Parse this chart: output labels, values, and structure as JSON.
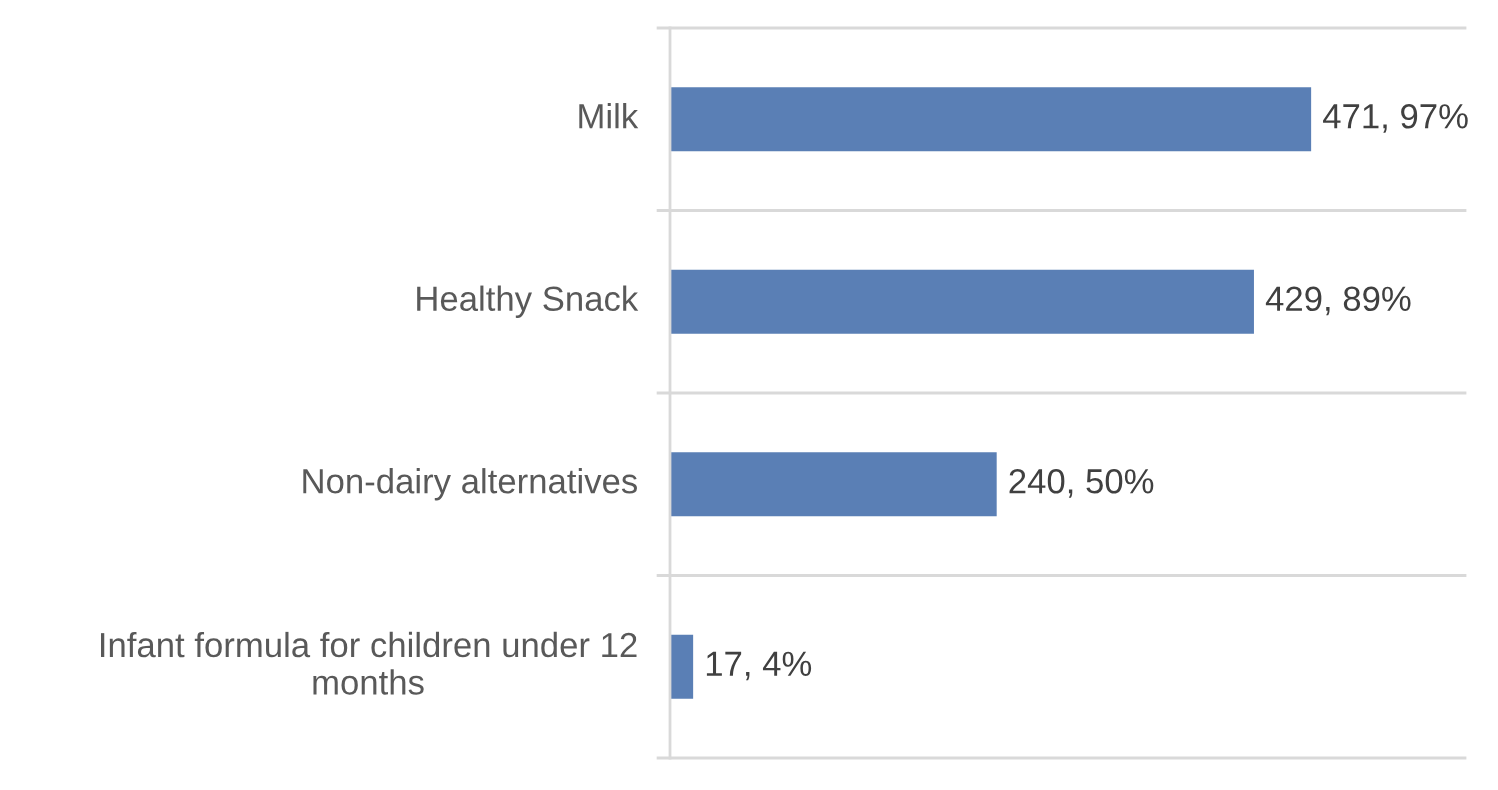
{
  "chart_data": {
    "type": "bar",
    "orientation": "horizontal",
    "categories": [
      "Milk",
      "Healthy Snack",
      "Non-dairy alternatives",
      "Infant formula for children under 12 months"
    ],
    "values": [
      471,
      429,
      240,
      17
    ],
    "value_labels": [
      "471, 97%",
      "429, 89%",
      "240, 50%",
      "17, 4%"
    ],
    "color": "#5a7fb5",
    "grid": "y",
    "tick_labels": "y"
  }
}
